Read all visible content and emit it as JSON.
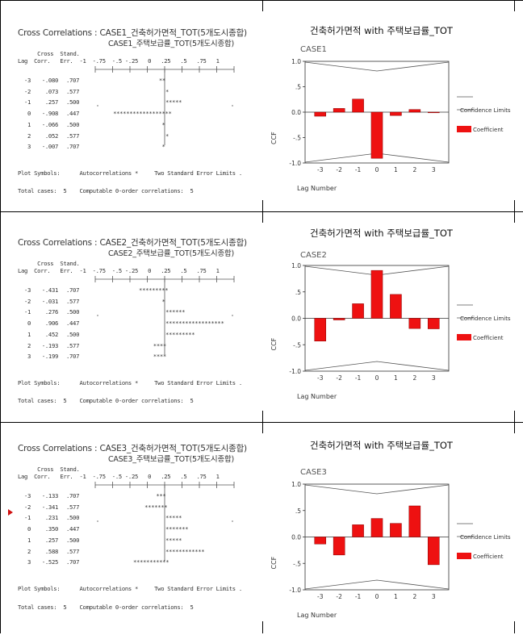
{
  "panels": [
    {
      "cc_title_line1": "Cross Correlations : CASE1_건축허가면적_TOT(5개도시종합)",
      "cc_title_line2": "CASE1_주택보급률_TOT(5개도시종합)",
      "head_line1": "      Cross  Stand.",
      "head_line2": "Lag  Corr.   Err.  -1  -.75  -.5 -.25   0   .25   .5   .75   1",
      "rows": [
        {
          "lag": "-3",
          "corr": "-.080",
          "err": ".707",
          "bars": "**"
        },
        {
          "lag": "-2",
          "corr": ".073",
          "err": ".577",
          "bars": "*"
        },
        {
          "lag": "-1",
          "corr": ".257",
          "err": ".500",
          "bars": "*****"
        },
        {
          "lag": "0",
          "corr": "-.908",
          "err": ".447",
          "bars": "******************"
        },
        {
          "lag": "1",
          "corr": "-.066",
          "err": ".500",
          "bars": "*"
        },
        {
          "lag": "2",
          "corr": ".052",
          "err": ".577",
          "bars": "*"
        },
        {
          "lag": "3",
          "corr": "-.007",
          "err": ".707",
          "bars": "*"
        }
      ],
      "plot_symbols": "Plot Symbols:      Autocorrelations *     Two Standard Error Limits .",
      "total_cases": "Total cases:  5    Computable 0-order correlations:  5",
      "chart_title": "건축허가면적 with 주택보급률_TOT",
      "case_label": "CASE1",
      "chart_data": {
        "type": "bar",
        "categories": [
          "-3",
          "-2",
          "-1",
          "0",
          "1",
          "2",
          "3"
        ],
        "values": [
          -0.08,
          0.073,
          0.257,
          -0.908,
          -0.066,
          0.052,
          -0.007
        ],
        "ylabel": "CCF",
        "xlabel": "Lag Number",
        "ylim": [
          -1.0,
          1.0
        ],
        "yticks": [
          "1.0",
          ".5",
          "0.0",
          "-.5",
          "-1.0"
        ],
        "legend": [
          "Confidence Limits",
          "Coefficient"
        ]
      }
    },
    {
      "cc_title_line1": "Cross Correlations : CASE2_건축허가면적_TOT(5개도시종합)",
      "cc_title_line2": "CASE2_주택보급률_TOT(5개도시종합)",
      "head_line1": "      Cross  Stand.",
      "head_line2": "Lag  Corr.   Err.  -1  -.75  -.5 -.25   0   .25   .5   .75   1",
      "rows": [
        {
          "lag": "-3",
          "corr": "-.431",
          "err": ".707",
          "bars": "*********"
        },
        {
          "lag": "-2",
          "corr": "-.031",
          "err": ".577",
          "bars": "*"
        },
        {
          "lag": "-1",
          "corr": ".276",
          "err": ".500",
          "bars": "******"
        },
        {
          "lag": "0",
          "corr": ".906",
          "err": ".447",
          "bars": "******************"
        },
        {
          "lag": "1",
          "corr": ".452",
          "err": ".500",
          "bars": "*********"
        },
        {
          "lag": "2",
          "corr": "-.193",
          "err": ".577",
          "bars": "****"
        },
        {
          "lag": "3",
          "corr": "-.199",
          "err": ".707",
          "bars": "****"
        }
      ],
      "plot_symbols": "Plot Symbols:      Autocorrelations *     Two Standard Error Limits .",
      "total_cases": "Total cases:  5    Computable 0-order correlations:  5",
      "chart_title": "건축허가면적 with 주택보급률_TOT",
      "case_label": "CASE2",
      "chart_data": {
        "type": "bar",
        "categories": [
          "-3",
          "-2",
          "-1",
          "0",
          "1",
          "2",
          "3"
        ],
        "values": [
          -0.431,
          -0.031,
          0.276,
          0.906,
          0.452,
          -0.193,
          -0.199
        ],
        "ylabel": "CCF",
        "xlabel": "Lag Number",
        "ylim": [
          -1.0,
          1.0
        ],
        "yticks": [
          "1.0",
          ".5",
          "0.0",
          "-.5",
          "-1.0"
        ],
        "legend": [
          "Confidence Limits",
          "Coefficient"
        ]
      }
    },
    {
      "cc_title_line1": "Cross Correlations : CASE3_건축허가면적_TOT(5개도시종합)",
      "cc_title_line2": "CASE3_주택보급률_TOT(5개도시종합)",
      "head_line1": "      Cross  Stand.",
      "head_line2": "Lag  Corr.   Err.  -1  -.75  -.5 -.25   0   .25   .5   .75   1",
      "rows": [
        {
          "lag": "-3",
          "corr": "-.133",
          "err": ".707",
          "bars": "***"
        },
        {
          "lag": "-2",
          "corr": "-.341",
          "err": ".577",
          "bars": "*******"
        },
        {
          "lag": "-1",
          "corr": ".231",
          "err": ".500",
          "bars": "*****"
        },
        {
          "lag": "0",
          "corr": ".350",
          "err": ".447",
          "bars": "*******"
        },
        {
          "lag": "1",
          "corr": ".257",
          "err": ".500",
          "bars": "*****"
        },
        {
          "lag": "2",
          "corr": ".588",
          "err": ".577",
          "bars": "************"
        },
        {
          "lag": "3",
          "corr": "-.525",
          "err": ".707",
          "bars": "***********"
        }
      ],
      "plot_symbols": "Plot Symbols:      Autocorrelations *     Two Standard Error Limits .",
      "total_cases": "Total cases:  5    Computable 0-order correlations:  5",
      "chart_title": "건축허가면적 with 주택보급률_TOT",
      "case_label": "CASE3",
      "chart_data": {
        "type": "bar",
        "categories": [
          "-3",
          "-2",
          "-1",
          "0",
          "1",
          "2",
          "3"
        ],
        "values": [
          -0.133,
          -0.341,
          0.231,
          0.35,
          0.257,
          0.588,
          -0.525
        ],
        "ylabel": "CCF",
        "xlabel": "Lag Number",
        "ylim": [
          -1.0,
          1.0
        ],
        "yticks": [
          "1.0",
          ".5",
          "0.0",
          "-.5",
          "-1.0"
        ],
        "legend": [
          "Confidence Limits",
          "Coefficient"
        ]
      }
    }
  ],
  "colors": {
    "bar": "#ee1111",
    "axis": "#333333",
    "confidence": "#555555",
    "marker": "#d01010"
  },
  "marker_icon": "red-triangle-pointer-icon"
}
